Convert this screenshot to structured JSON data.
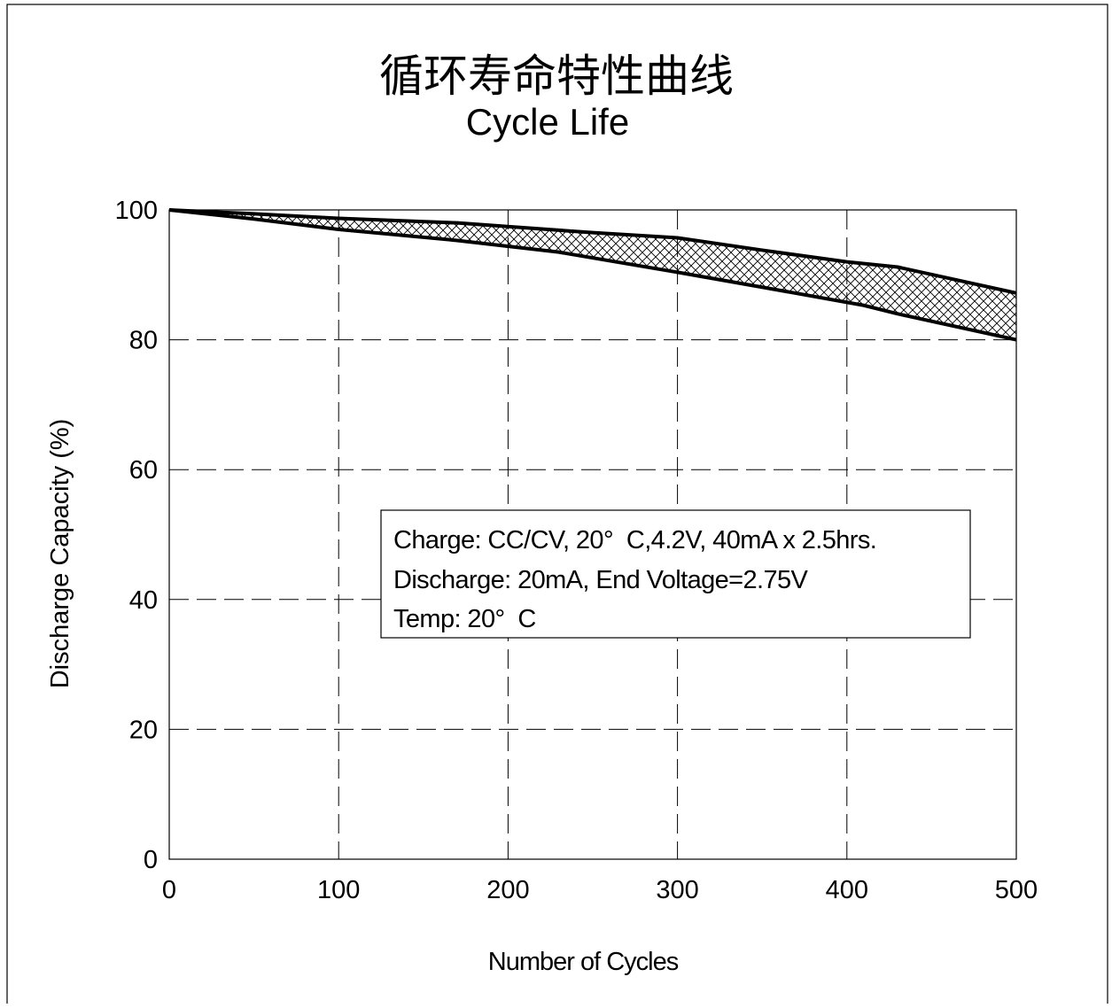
{
  "chart_data": {
    "type": "area",
    "title": "循环寿命特性曲线",
    "subtitle": "Cycle Life",
    "xlabel": "Number of Cycles",
    "ylabel": "Discharge Capacity (%)",
    "xlim": [
      0,
      500
    ],
    "ylim": [
      0,
      100
    ],
    "x_ticks": [
      "0",
      "100",
      "200",
      "300",
      "400",
      "500"
    ],
    "y_ticks": [
      "0",
      "20",
      "40",
      "60",
      "80",
      "100"
    ],
    "grid": true,
    "series": [
      {
        "x": [
          0,
          50,
          100,
          170,
          250,
          300,
          350,
          400,
          430,
          500
        ],
        "values": [
          100,
          99.4,
          98.7,
          98.0,
          96.5,
          95.7,
          93.8,
          92.0,
          91.2,
          87.2
        ]
      },
      {
        "x": [
          0,
          50,
          100,
          170,
          230,
          300,
          350,
          410,
          430,
          500
        ],
        "values": [
          100,
          98.6,
          97.0,
          95.3,
          93.5,
          90.4,
          88.1,
          85.3,
          84.0,
          80.0
        ]
      }
    ],
    "band_fill": "crosshatch",
    "line_color": "#000000",
    "annotation": [
      "Charge: CC/CV, 20°  C,4.2V, 40mA x 2.5hrs.",
      "Discharge: 20mA, End Voltage=2.75V",
      "Temp: 20°  C"
    ]
  }
}
